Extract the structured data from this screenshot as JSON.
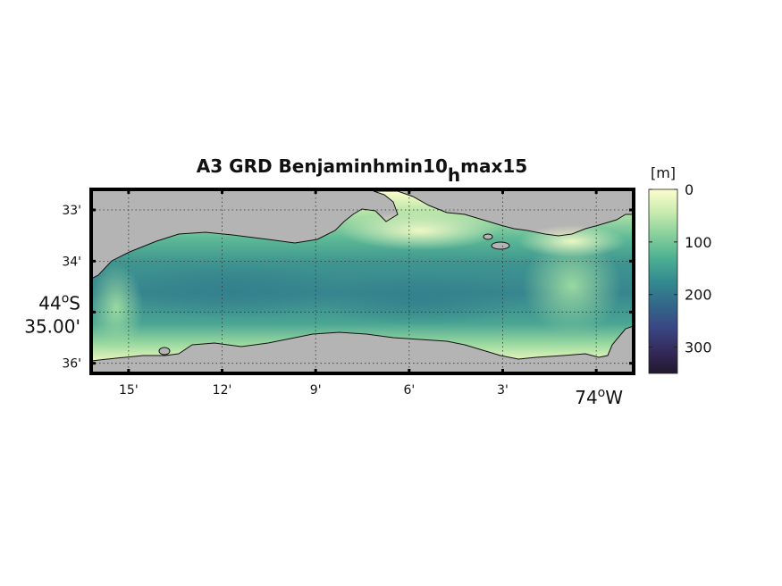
{
  "chart_data": {
    "type": "heatmap",
    "title": {
      "prefix": "A3 GRD Benjaminhmin10",
      "subscript": "h",
      "suffix": "max15"
    },
    "map": {
      "lon_range": [
        -74.27,
        -73.98
      ],
      "lat_range": [
        -44.585,
        -44.555
      ],
      "land_color": "#b4b4b4"
    },
    "x_ticks": [
      {
        "lon": -74.25,
        "label": "15'"
      },
      {
        "lon": -74.2,
        "label": "12'"
      },
      {
        "lon": -74.15,
        "label": "9'"
      },
      {
        "lon": -74.1,
        "label": "6'"
      },
      {
        "lon": -74.05,
        "label": "3'"
      },
      {
        "lon": -74.0,
        "label_deg": "74",
        "label_deg_sup": "o",
        "label_hemi": "W"
      }
    ],
    "y_ticks": [
      {
        "lat": -44.55,
        "label": "33'"
      },
      {
        "lat": -44.5667,
        "label": "34'"
      },
      {
        "lat": -44.5833,
        "label_deg": "44",
        "label_deg_sup": "o",
        "label_hemi": "S",
        "label_min": "35.00'"
      },
      {
        "lat": -44.6,
        "label": "36'"
      }
    ],
    "colorbar": {
      "label": "[m]",
      "range": [
        0,
        350
      ],
      "ticks": [
        0,
        100,
        200,
        300
      ],
      "colors": [
        "#fdfdcc",
        "#c8ebb0",
        "#86cf9a",
        "#4cb092",
        "#348a90",
        "#33688a",
        "#3a4784",
        "#342b5c",
        "#22172e"
      ]
    }
  }
}
